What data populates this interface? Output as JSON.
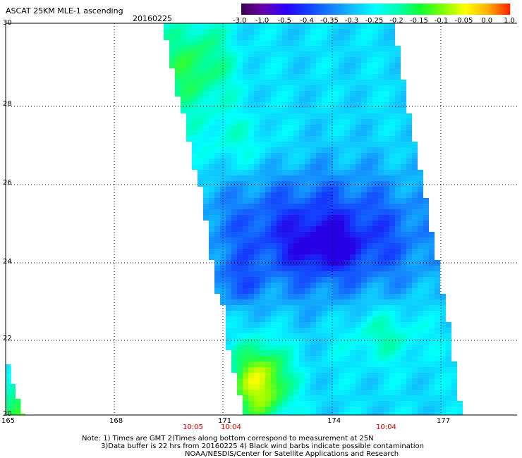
{
  "header": {
    "title": "ASCAT 25KM MLE-1 ascending",
    "date": "20160225"
  },
  "colorbar": {
    "labels": [
      "-3.0",
      "-1.0",
      "-0.5",
      "-0.4",
      "-0.35",
      "-0.3",
      "-0.25",
      "-0.2",
      "-0.15",
      "-0.1",
      "-0.05",
      "0.0",
      "1.0"
    ],
    "colors": [
      "#3a0050",
      "#6a00b0",
      "#2a00ff",
      "#1040ff",
      "#1480ff",
      "#10c0ff",
      "#00ffff",
      "#00ffb0",
      "#10ff30",
      "#80ff00",
      "#ffff00",
      "#ffb000",
      "#ff2000"
    ]
  },
  "axes": {
    "lat_labels": [
      "30",
      "28",
      "26",
      "24",
      "22",
      "20"
    ],
    "lon_labels": [
      "165",
      "168",
      "171",
      "174",
      "177"
    ],
    "lat_range": [
      20,
      30
    ],
    "lon_range": [
      165,
      179.5
    ],
    "grid": true
  },
  "times": [
    "10:05",
    "10:04",
    "10:04"
  ],
  "notes": {
    "line1": "Note: 1) Times are GMT 2)Times along bottom correspond to measurement at 25N",
    "line2": "3)Data buffer is 22 hrs from 20160225 4) Black wind barbs indicate possible contamination",
    "line3": "NOAA/NESDIS/Center for Satellite Applications and Research"
  },
  "accent_colors": {
    "time_text": "#cc0000",
    "grid": "#000000"
  }
}
